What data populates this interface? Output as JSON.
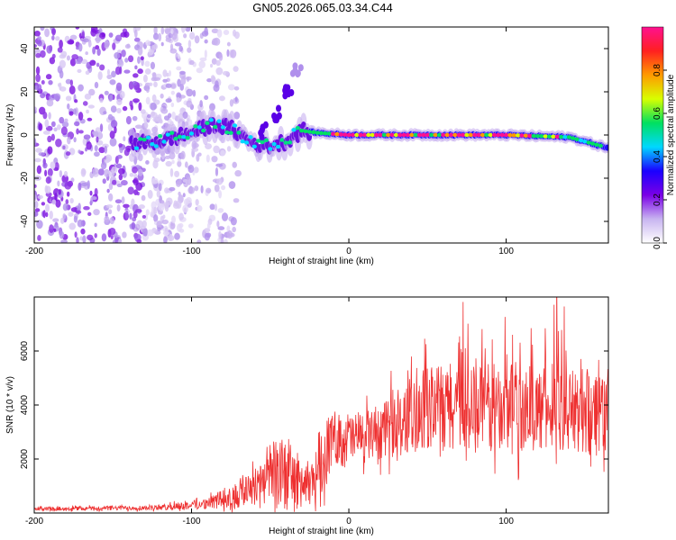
{
  "title": "GN05.2026.065.03.34.C44",
  "chart_data": [
    {
      "type": "heatmap",
      "xlabel": "Height of straight line (km)",
      "ylabel": "Frequency (Hz)",
      "xlim": [
        -200,
        165
      ],
      "ylim": [
        -50,
        50
      ],
      "xticks": [
        -200,
        -100,
        0,
        100
      ],
      "yticks": [
        -40,
        -20,
        0,
        20,
        40
      ],
      "xtick_labels": [
        "-200",
        "-100",
        "0",
        "100"
      ],
      "ytick_labels": [
        "-40",
        "-20",
        "0",
        "20",
        "40"
      ],
      "colorbar": {
        "label": "Normalized spectral amplitude",
        "range": [
          0,
          1
        ],
        "ticks": [
          0.0,
          0.2,
          0.4,
          0.6,
          0.8
        ],
        "tick_labels": [
          "0.0",
          "0.2",
          "0.4",
          "0.6",
          "0.8"
        ],
        "colors": [
          "#ffffff",
          "#c8b4f0",
          "#7a00e6",
          "#1a00ff",
          "#00d8ff",
          "#00e060",
          "#d8ff00",
          "#ff9a00",
          "#ff2020",
          "#ff1090"
        ]
      },
      "ridge": [
        {
          "x": -135,
          "f": -4
        },
        {
          "x": -120,
          "f": -3
        },
        {
          "x": -100,
          "f": 1
        },
        {
          "x": -85,
          "f": 5
        },
        {
          "x": -75,
          "f": 3
        },
        {
          "x": -60,
          "f": -4
        },
        {
          "x": -50,
          "f": -5
        },
        {
          "x": -40,
          "f": -3
        },
        {
          "x": -30,
          "f": 2
        },
        {
          "x": -20,
          "f": 1
        },
        {
          "x": 0,
          "f": 0
        },
        {
          "x": 50,
          "f": 0
        },
        {
          "x": 100,
          "f": 0
        },
        {
          "x": 140,
          "f": -1
        },
        {
          "x": 165,
          "f": -6
        }
      ],
      "branch": [
        {
          "x": -55,
          "f": 2
        },
        {
          "x": -45,
          "f": 10
        },
        {
          "x": -38,
          "f": 20
        },
        {
          "x": -33,
          "f": 30
        }
      ]
    },
    {
      "type": "line",
      "xlabel": "Height of straight line (km)",
      "ylabel": "SNR (10 * v/v)",
      "xlim": [
        -200,
        165
      ],
      "ylim": [
        0,
        8000
      ],
      "xticks": [
        -200,
        -100,
        0,
        100
      ],
      "yticks": [
        2000,
        4000,
        6000
      ],
      "xtick_labels": [
        "-200",
        "-100",
        "0",
        "100"
      ],
      "ytick_labels": [
        "2000",
        "4000",
        "6000"
      ],
      "color": "#ee3030",
      "envelope": [
        {
          "x": -200,
          "mean": 150,
          "amp": 80
        },
        {
          "x": -120,
          "mean": 200,
          "amp": 120
        },
        {
          "x": -90,
          "mean": 350,
          "amp": 250
        },
        {
          "x": -70,
          "mean": 700,
          "amp": 700
        },
        {
          "x": -50,
          "mean": 1500,
          "amp": 1400
        },
        {
          "x": -40,
          "mean": 1500,
          "amp": 1800
        },
        {
          "x": -25,
          "mean": 900,
          "amp": 800
        },
        {
          "x": -18,
          "mean": 2000,
          "amp": 1800
        },
        {
          "x": -10,
          "mean": 2800,
          "amp": 1200
        },
        {
          "x": 10,
          "mean": 2800,
          "amp": 1200
        },
        {
          "x": 30,
          "mean": 3200,
          "amp": 1400
        },
        {
          "x": 50,
          "mean": 3900,
          "amp": 1900
        },
        {
          "x": 100,
          "mean": 3900,
          "amp": 2100
        },
        {
          "x": 140,
          "mean": 3800,
          "amp": 1900
        },
        {
          "x": 165,
          "mean": 3800,
          "amp": 2200
        }
      ]
    }
  ]
}
